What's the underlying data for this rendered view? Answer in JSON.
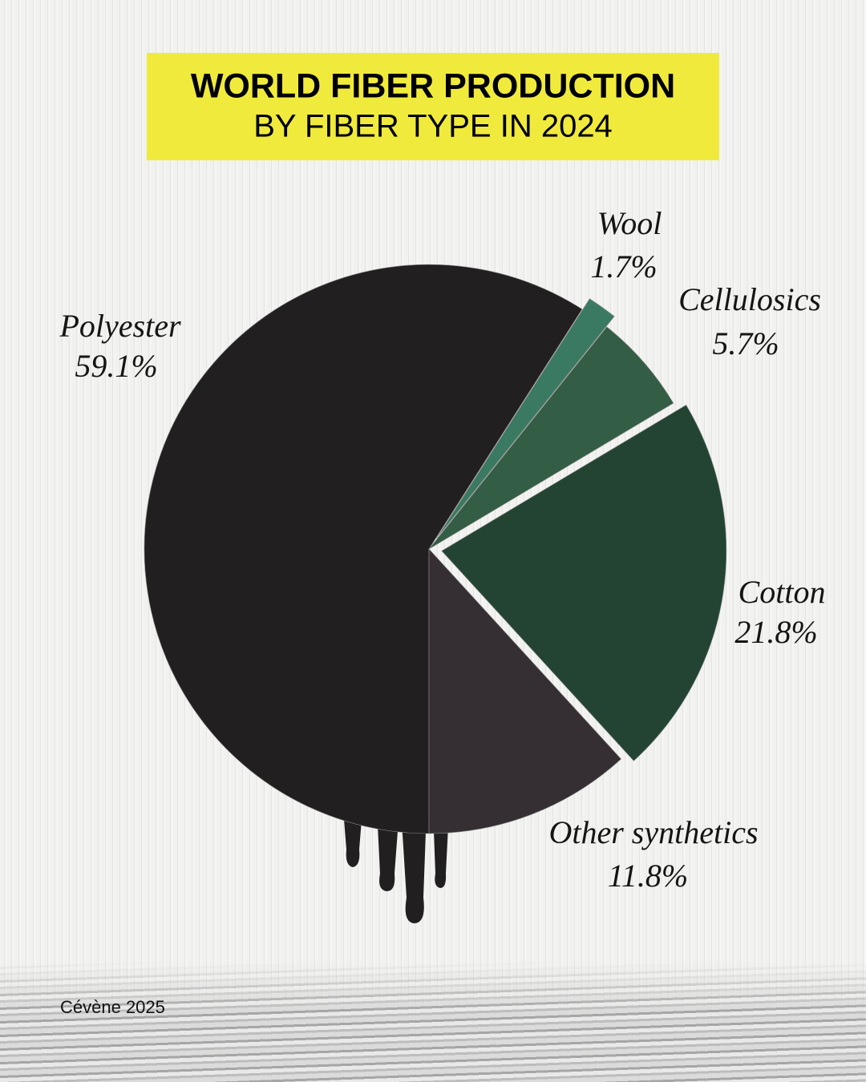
{
  "chart_data": {
    "type": "pie",
    "title": "WORLD FIBER PRODUCTION",
    "subtitle": "BY FIBER TYPE IN 2024",
    "categories": [
      "Polyester",
      "Wool",
      "Cellulosics",
      "Cotton",
      "Other synthetics"
    ],
    "values": [
      59.1,
      1.7,
      5.7,
      21.8,
      11.8
    ],
    "value_labels": [
      "59.1%",
      "1.7%",
      "5.7%",
      "21.8%",
      "11.8%"
    ],
    "colors": [
      "#221f20",
      "#3b7a62",
      "#335d44",
      "#234433",
      "#352f33"
    ],
    "source": "Cévène 2025"
  }
}
